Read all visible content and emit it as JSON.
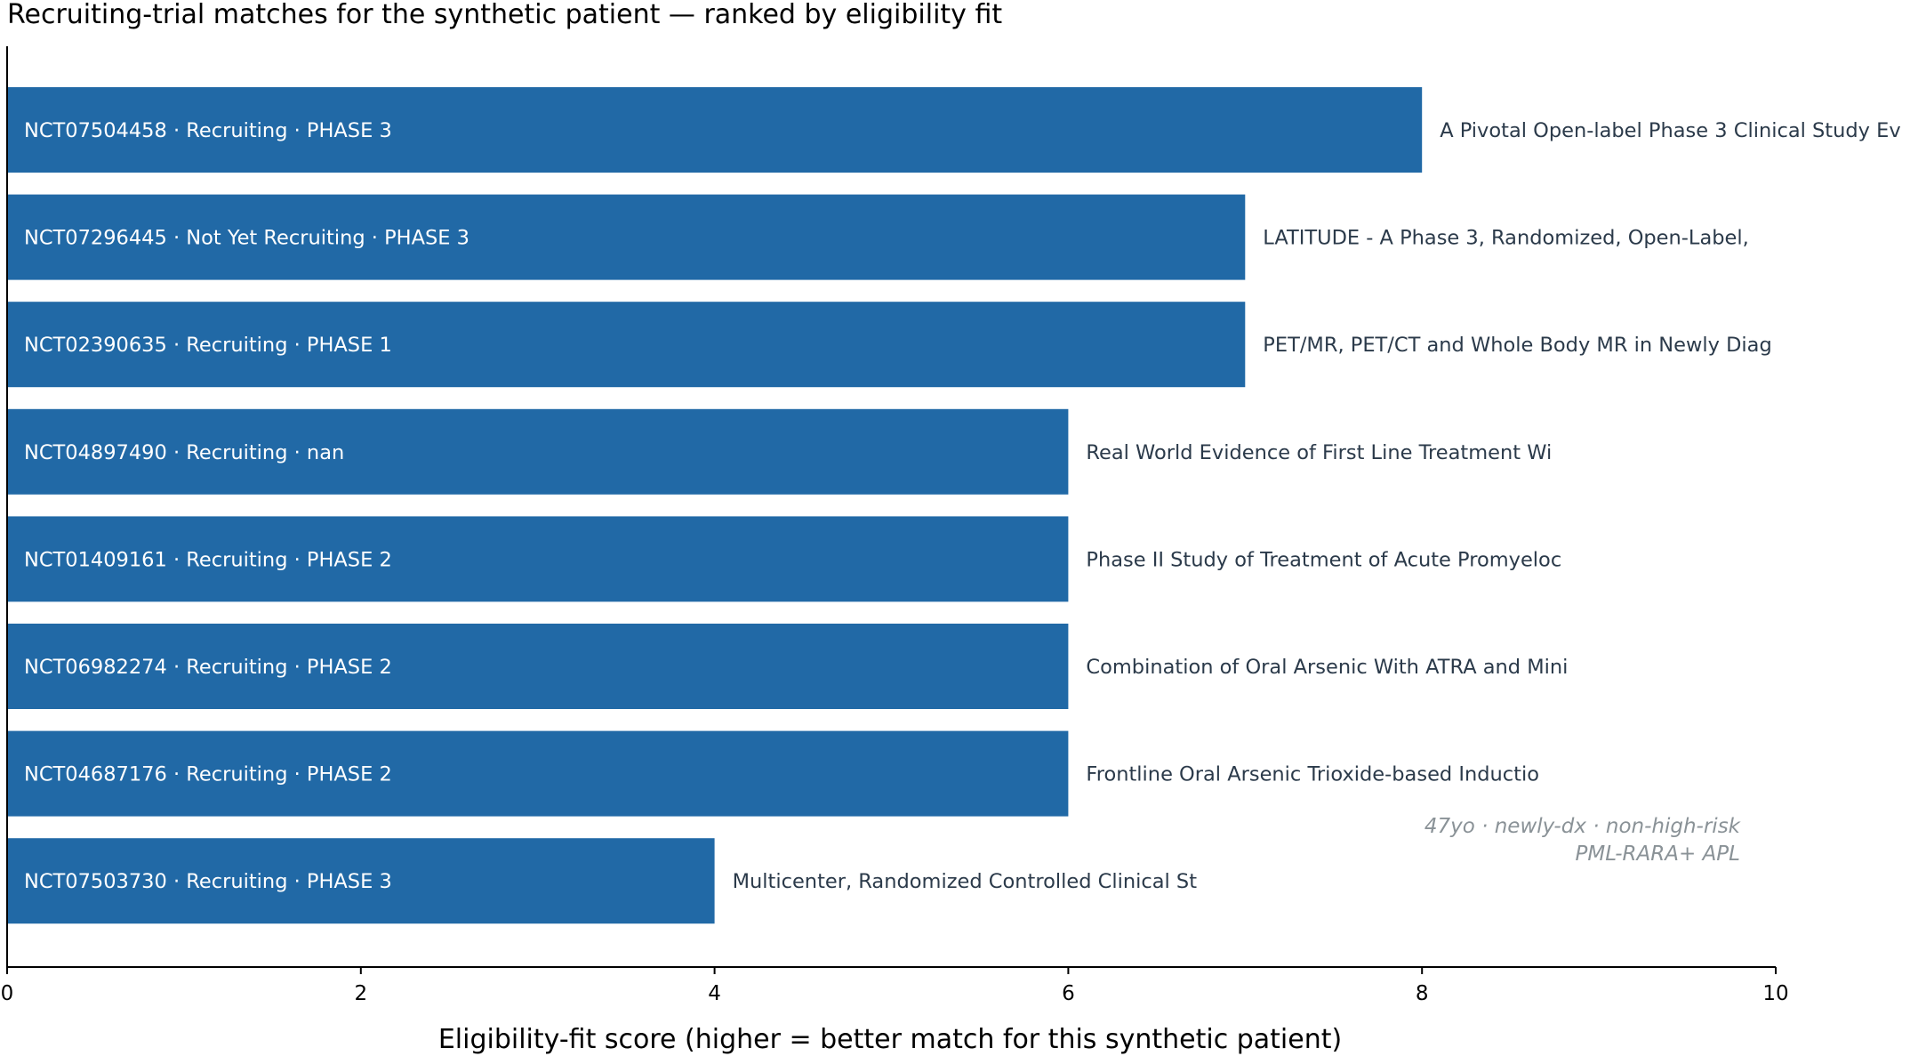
{
  "chart_data": {
    "type": "bar",
    "orientation": "horizontal",
    "title": "Recruiting-trial matches for the synthetic patient — ranked by eligibility fit",
    "xlabel": "Eligibility-fit score (higher = better match for this synthetic patient)",
    "ylabel": "",
    "xlim": [
      0,
      10
    ],
    "xticks": [
      "0",
      "2",
      "4",
      "6",
      "8",
      "10"
    ],
    "bar_color": "#2169a6",
    "grid": false,
    "bars": [
      {
        "label": "NCT07504458 · Recruiting · PHASE 3",
        "value": 8,
        "trial_title": "A Pivotal Open-label Phase 3 Clinical Study Ev"
      },
      {
        "label": "NCT07296445 · Not Yet Recruiting · PHASE 3",
        "value": 7,
        "trial_title": "LATITUDE - A Phase 3, Randomized, Open-Label,"
      },
      {
        "label": "NCT02390635 · Recruiting · PHASE 1",
        "value": 7,
        "trial_title": "PET/MR, PET/CT and Whole Body MR in Newly Diag"
      },
      {
        "label": "NCT04897490 · Recruiting · nan",
        "value": 6,
        "trial_title": "Real World Evidence of First Line Treatment Wi"
      },
      {
        "label": "NCT01409161 · Recruiting · PHASE 2",
        "value": 6,
        "trial_title": "Phase II Study of Treatment of Acute Promyeloc"
      },
      {
        "label": "NCT06982274 · Recruiting · PHASE 2",
        "value": 6,
        "trial_title": "Combination of Oral Arsenic With ATRA and Mini"
      },
      {
        "label": "NCT04687176 · Recruiting · PHASE 2",
        "value": 6,
        "trial_title": "Frontline Oral Arsenic Trioxide-based Inductio"
      },
      {
        "label": "NCT07503730 · Recruiting · PHASE 3",
        "value": 4,
        "trial_title": "Multicenter, Randomized Controlled Clinical St"
      }
    ],
    "annotation": {
      "lines": [
        "47yo · newly-dx · non-high-risk",
        "PML-RARA+ APL"
      ],
      "placement": "bottom-right"
    }
  }
}
